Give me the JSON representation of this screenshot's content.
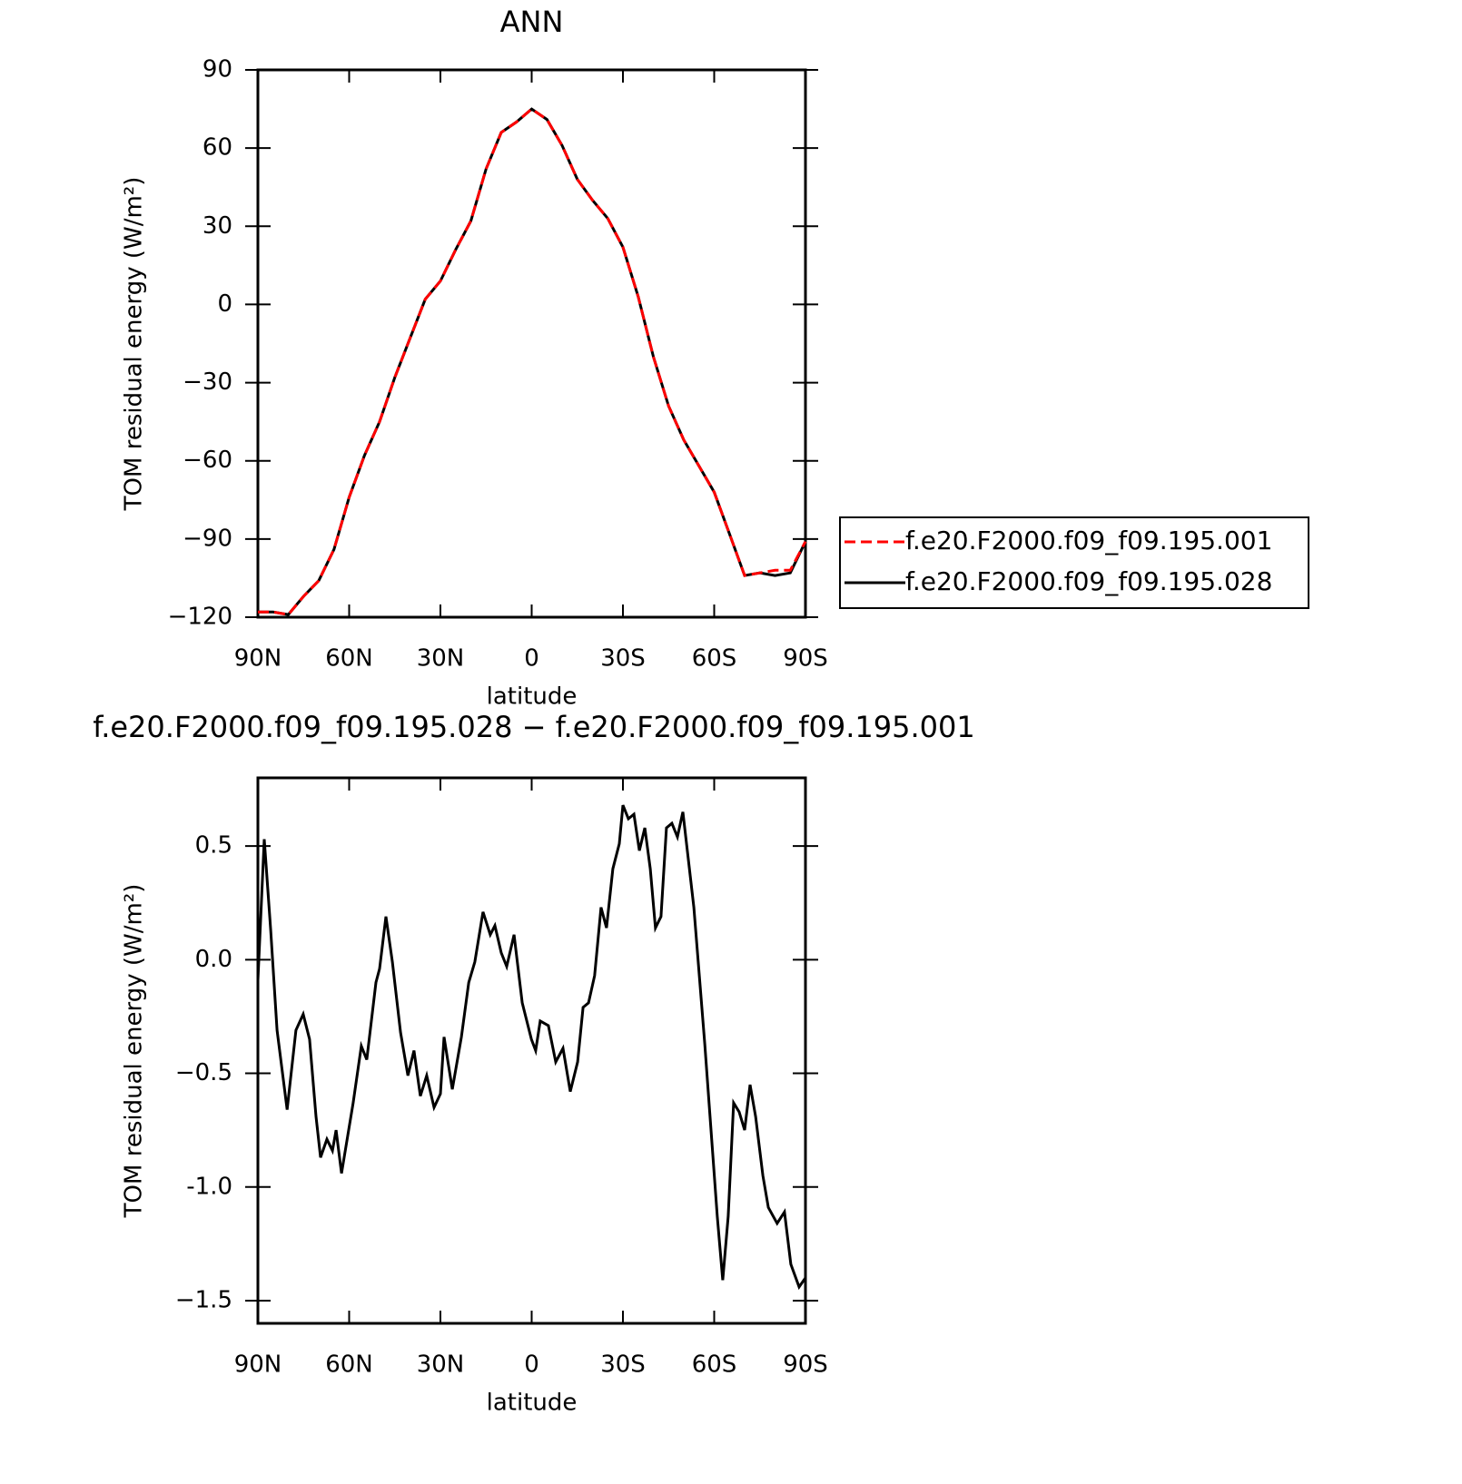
{
  "chart_data": [
    {
      "type": "line",
      "title": "ANN",
      "xlabel": "latitude",
      "ylabel": "TOM residual energy (W/m²)",
      "xlim": [
        90,
        -90
      ],
      "xticks": [
        {
          "value": 90,
          "label": "90N"
        },
        {
          "value": 60,
          "label": "60N"
        },
        {
          "value": 30,
          "label": "30N"
        },
        0,
        {
          "value": -30,
          "label": "30S"
        },
        {
          "value": -60,
          "label": "60S"
        },
        {
          "value": -90,
          "label": "90S"
        }
      ],
      "ylim": [
        -120,
        90
      ],
      "yticks": [
        90,
        60,
        30,
        0,
        -30,
        -60,
        -90,
        -120
      ],
      "x": [
        90,
        85,
        80,
        75,
        70,
        65,
        60,
        55,
        50,
        45,
        40,
        35,
        30,
        25,
        20,
        15,
        10,
        5,
        0,
        -5,
        -10,
        -15,
        -20,
        -25,
        -30,
        -35,
        -40,
        -45,
        -50,
        -55,
        -60,
        -65,
        -70,
        -75,
        -80,
        -85,
        -90
      ],
      "series": [
        {
          "name": "f.e20.F2000.f09_f09.195.001",
          "color": "#ff0000",
          "linestyle": "dashed",
          "values": [
            -118,
            -118,
            -119,
            -112,
            -106,
            -94,
            -74,
            -58,
            -45,
            -28,
            -13,
            2,
            9,
            21,
            32,
            52,
            66,
            70,
            75,
            71,
            61,
            48,
            40,
            33,
            22,
            3,
            -20,
            -39,
            -52,
            -62,
            -72,
            -88,
            -104,
            -103,
            -102,
            -102,
            -91
          ]
        },
        {
          "name": "f.e20.F2000.f09_f09.195.028",
          "color": "#000000",
          "linestyle": "solid",
          "values": [
            -118,
            -118,
            -119,
            -112,
            -106,
            -94,
            -74,
            -58,
            -45,
            -28,
            -13,
            2,
            9,
            21,
            32,
            52,
            66,
            70,
            75,
            71,
            61,
            48,
            40,
            33,
            22,
            3,
            -20,
            -39,
            -52,
            -62,
            -72,
            -88,
            -104,
            -103,
            -104,
            -103,
            -91
          ]
        }
      ]
    },
    {
      "type": "line",
      "title": "f.e20.F2000.f09_f09.195.028 − f.e20.F2000.f09_f09.195.001",
      "xlabel": "latitude",
      "ylabel": "TOM residual energy (W/m²)",
      "xlim": [
        90,
        -90
      ],
      "xticks": [
        {
          "value": 90,
          "label": "90N"
        },
        {
          "value": 60,
          "label": "60N"
        },
        {
          "value": 30,
          "label": "30N"
        },
        0,
        {
          "value": -30,
          "label": "30S"
        },
        {
          "value": -60,
          "label": "60S"
        },
        {
          "value": -90,
          "label": "90S"
        }
      ],
      "ylim": [
        -1.6,
        0.8
      ],
      "yticks": [
        0.5,
        {
          "value": 0,
          "label": "0.0"
        },
        -0.5,
        {
          "value": -1,
          "label": "-1.0"
        },
        -1.5
      ],
      "x": [
        90,
        87.9,
        85.8,
        83.7,
        80.4,
        77.5,
        75.1,
        73,
        70.9,
        69.4,
        67.3,
        65.5,
        64.3,
        62.5,
        58.7,
        56,
        54.2,
        51.2,
        50,
        47.9,
        45.8,
        43.1,
        40.7,
        38.7,
        36.6,
        34.5,
        32.1,
        30,
        28.8,
        26.1,
        23.1,
        20.7,
        18.7,
        16,
        13.6,
        12.1,
        10,
        8.2,
        5.8,
        3.1,
        0.1,
        -1.3,
        -2.8,
        -5.5,
        -7.9,
        -10.3,
        -12.7,
        -15.1,
        -16.9,
        -18.7,
        -20.7,
        -22.8,
        -24.6,
        -26.7,
        -28.8,
        -30,
        -31.8,
        -33.6,
        -35.4,
        -37.2,
        -39,
        -40.7,
        -42.5,
        -44.3,
        -46.1,
        -47.9,
        -49.7,
        -53.3,
        -56.9,
        -61,
        -62.8,
        -64.6,
        -66.4,
        -68.2,
        -70,
        -71.8,
        -73.6,
        -76,
        -77.8,
        -80.7,
        -83.1,
        -85.2,
        -87.9,
        -90
      ],
      "series": [
        {
          "color": "#000000",
          "linestyle": "solid",
          "values": [
            -0.09,
            0.53,
            0.13,
            -0.31,
            -0.66,
            -0.31,
            -0.24,
            -0.35,
            -0.69,
            -0.87,
            -0.79,
            -0.84,
            -0.75,
            -0.94,
            -0.63,
            -0.38,
            -0.44,
            -0.1,
            -0.04,
            0.19,
            -0.01,
            -0.32,
            -0.51,
            -0.4,
            -0.6,
            -0.51,
            -0.65,
            -0.59,
            -0.34,
            -0.57,
            -0.34,
            -0.1,
            -0.01,
            0.21,
            0.11,
            0.15,
            0.03,
            -0.03,
            0.11,
            -0.19,
            -0.35,
            -0.4,
            -0.27,
            -0.29,
            -0.45,
            -0.39,
            -0.58,
            -0.45,
            -0.21,
            -0.19,
            -0.07,
            0.23,
            0.14,
            0.4,
            0.51,
            0.68,
            0.62,
            0.64,
            0.48,
            0.58,
            0.4,
            0.14,
            0.19,
            0.58,
            0.6,
            0.54,
            0.65,
            0.23,
            -0.37,
            -1.13,
            -1.41,
            -1.13,
            -0.63,
            -0.67,
            -0.75,
            -0.55,
            -0.69,
            -0.95,
            -1.09,
            -1.16,
            -1.11,
            -1.34,
            -1.44,
            -1.4
          ]
        }
      ]
    }
  ]
}
